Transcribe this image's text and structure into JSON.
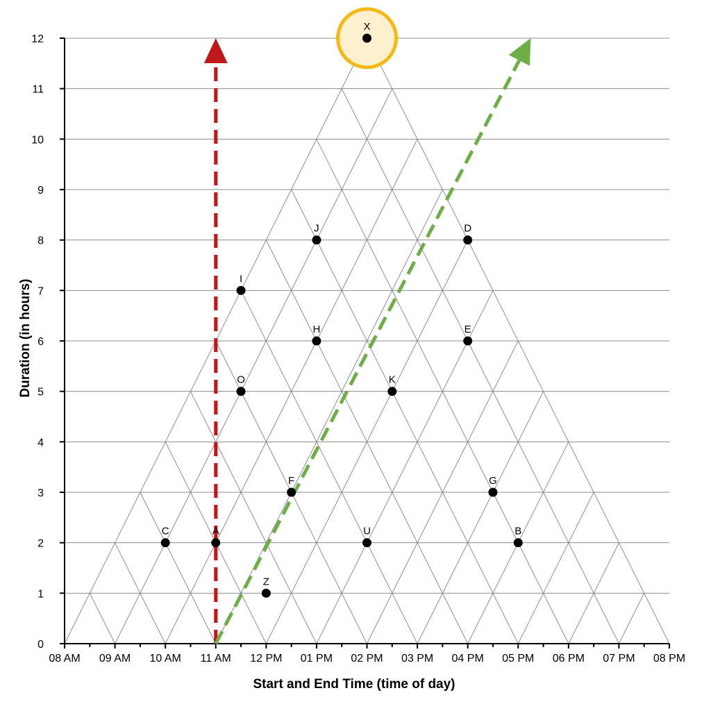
{
  "chart_data": {
    "type": "scatter",
    "title": "",
    "xlabel": "Start and End Time (time of day)",
    "ylabel": "Duration (in hours)",
    "x_ticks": [
      "08 AM",
      "09 AM",
      "10 AM",
      "11 AM",
      "12 PM",
      "01 PM",
      "02 PM",
      "03 PM",
      "04 PM",
      "05 PM",
      "06 PM",
      "07 PM",
      "08 PM"
    ],
    "y_ticks": [
      "0",
      "1",
      "2",
      "3",
      "4",
      "5",
      "6",
      "7",
      "8",
      "9",
      "10",
      "11",
      "12"
    ],
    "xlim": [
      8,
      20
    ],
    "ylim": [
      0,
      12
    ],
    "grid": "horizontal lines plus triangular start/end lattice",
    "points": [
      {
        "label": "X",
        "x": 14,
        "y": 12,
        "highlighted": true
      },
      {
        "label": "J",
        "x": 13,
        "y": 8
      },
      {
        "label": "D",
        "x": 16,
        "y": 8
      },
      {
        "label": "I",
        "x": 11.5,
        "y": 7
      },
      {
        "label": "H",
        "x": 13,
        "y": 6
      },
      {
        "label": "E",
        "x": 16,
        "y": 6
      },
      {
        "label": "O",
        "x": 11.5,
        "y": 5
      },
      {
        "label": "K",
        "x": 14.5,
        "y": 5
      },
      {
        "label": "F",
        "x": 12.5,
        "y": 3
      },
      {
        "label": "G",
        "x": 16.5,
        "y": 3
      },
      {
        "label": "C",
        "x": 10,
        "y": 2
      },
      {
        "label": "A",
        "x": 11,
        "y": 2
      },
      {
        "label": "U",
        "x": 14,
        "y": 2
      },
      {
        "label": "B",
        "x": 17,
        "y": 2
      },
      {
        "label": "Z",
        "x": 12,
        "y": 1
      }
    ],
    "arrows": [
      {
        "from": [
          11,
          0
        ],
        "to": [
          11,
          12
        ],
        "color": "#c0171a",
        "style": "dashed"
      },
      {
        "from": [
          11,
          0
        ],
        "to": [
          17.25,
          12
        ],
        "color": "#6fae46",
        "style": "dashed"
      }
    ],
    "highlight_color": "#f5b915",
    "highlight_fill": "#fdf0cf",
    "point_color": "#000000",
    "grid_color": "#8c8c8c"
  }
}
